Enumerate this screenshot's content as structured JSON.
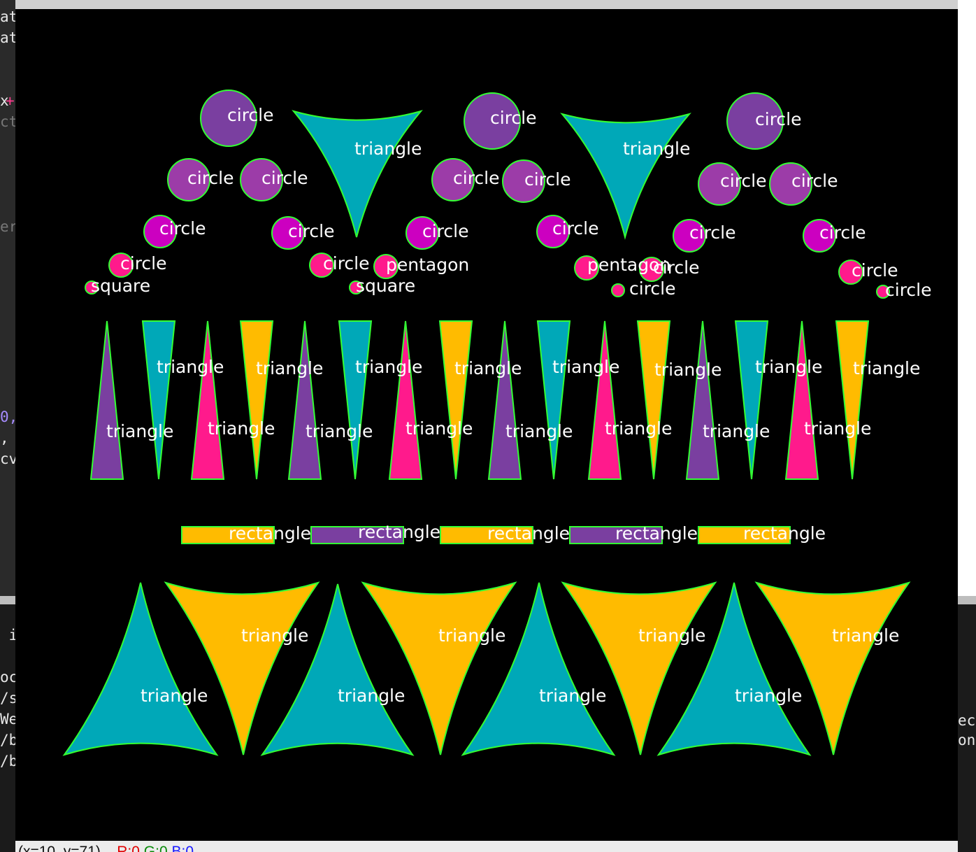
{
  "window": {
    "title": ""
  },
  "status_bar": {
    "coords": "(x=10, y=71)",
    "r": "R:0",
    "g": "G:0",
    "b": "B:0"
  },
  "left_fragments": [
    {
      "text": "at",
      "tone": ""
    },
    {
      "text": "at",
      "tone": ""
    },
    {
      "text": "x",
      "tone": ""
    },
    {
      "text": "+",
      "tone": "pink"
    },
    {
      "text": "ct",
      "tone": "dim"
    },
    {
      "text": "er",
      "tone": "dim"
    },
    {
      "text": "0,",
      "tone": "acc"
    },
    {
      "text": ",",
      "tone": ""
    },
    {
      "text": "cv",
      "tone": ""
    },
    {
      "text": " i",
      "tone": ""
    },
    {
      "text": "oc",
      "tone": ""
    },
    {
      "text": "/s",
      "tone": ""
    },
    {
      "text": "We",
      "tone": ""
    },
    {
      "text": "/b",
      "tone": ""
    },
    {
      "text": "/b",
      "tone": ""
    }
  ],
  "right_fragments": [
    {
      "text": "ec",
      "tone": ""
    },
    {
      "text": "on",
      "tone": ""
    }
  ],
  "colors": {
    "purple": "#7a3fa0",
    "violet": "#9c3ca8",
    "magenta": "#cc00c0",
    "pink": "#ff1a8c",
    "teal": "#00a8b8",
    "gold": "#ffbb00",
    "contour": "#33ff33",
    "label": "#ffffff",
    "background": "#000000"
  },
  "shape_groups": {
    "circles_large": {
      "label": "circle",
      "color": "purple"
    },
    "circles_medium": {
      "label": "circle",
      "color": "violet"
    },
    "circles_small": {
      "label": "circle",
      "color": "magenta"
    },
    "circles_tiny": {
      "label": "circle",
      "color": "pink"
    },
    "squares": {
      "label": "square",
      "color": "pink"
    },
    "pentagons": {
      "label": "pentagon",
      "color": "pink"
    },
    "triangles_top": {
      "label": "triangle",
      "color": "teal"
    },
    "triangles_spikes": {
      "label": "triangle",
      "colors": [
        "purple",
        "teal",
        "pink",
        "gold"
      ]
    },
    "rectangles": {
      "label": "rectangle",
      "colors": [
        "gold",
        "purple"
      ]
    },
    "triangles_bottom_up": {
      "label": "triangle",
      "color": "teal"
    },
    "triangles_bottom_down": {
      "label": "triangle",
      "color": "gold"
    }
  },
  "labels": [
    "circle",
    "triangle",
    "circle",
    "triangle",
    "circle",
    "circle",
    "circle",
    "circle",
    "circle",
    "circle",
    "circle",
    "circle",
    "circle",
    "circle",
    "circle",
    "circle",
    "circle",
    "circle",
    "circle",
    "pentagon",
    "pentagon",
    "circle",
    "circle",
    "square",
    "square",
    "circle",
    "circle",
    "triangle",
    "triangle",
    "triangle",
    "triangle",
    "triangle",
    "triangle",
    "triangle",
    "triangle",
    "triangle",
    "triangle",
    "triangle",
    "triangle",
    "triangle",
    "triangle",
    "triangle",
    "triangle",
    "rectangle",
    "rectangle",
    "rectangle",
    "rectangle",
    "rectangle",
    "triangle",
    "triangle",
    "triangle",
    "triangle",
    "triangle",
    "triangle",
    "triangle",
    "triangle"
  ]
}
